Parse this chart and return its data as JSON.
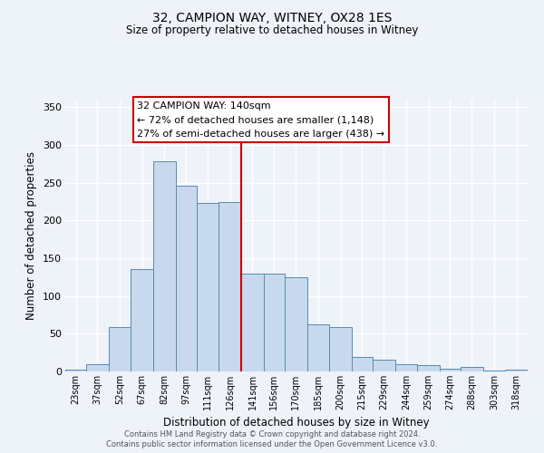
{
  "title": "32, CAMPION WAY, WITNEY, OX28 1ES",
  "subtitle": "Size of property relative to detached houses in Witney",
  "xlabel": "Distribution of detached houses by size in Witney",
  "ylabel": "Number of detached properties",
  "bin_labels": [
    "23sqm",
    "37sqm",
    "52sqm",
    "67sqm",
    "82sqm",
    "97sqm",
    "111sqm",
    "126sqm",
    "141sqm",
    "156sqm",
    "170sqm",
    "185sqm",
    "200sqm",
    "215sqm",
    "229sqm",
    "244sqm",
    "259sqm",
    "274sqm",
    "288sqm",
    "303sqm",
    "318sqm"
  ],
  "bar_values": [
    3,
    10,
    59,
    136,
    278,
    246,
    223,
    225,
    130,
    130,
    125,
    62,
    59,
    19,
    16,
    10,
    9,
    4,
    6,
    1,
    2
  ],
  "bar_color": "#c8d9ed",
  "bar_edge_color": "#5a8ab0",
  "property_line_color": "#cc0000",
  "annotation_title": "32 CAMPION WAY: 140sqm",
  "annotation_line1": "← 72% of detached houses are smaller (1,148)",
  "annotation_line2": "27% of semi-detached houses are larger (438) →",
  "annotation_box_color": "#cc0000",
  "ylim": [
    0,
    360
  ],
  "yticks": [
    0,
    50,
    100,
    150,
    200,
    250,
    300,
    350
  ],
  "bg_color": "#eef2f9",
  "footer_line1": "Contains HM Land Registry data © Crown copyright and database right 2024.",
  "footer_line2": "Contains public sector information licensed under the Open Government Licence v3.0.",
  "bin_edges": [
    23,
    37,
    52,
    67,
    82,
    97,
    111,
    126,
    141,
    156,
    170,
    185,
    200,
    215,
    229,
    244,
    259,
    274,
    288,
    303,
    318,
    333
  ]
}
